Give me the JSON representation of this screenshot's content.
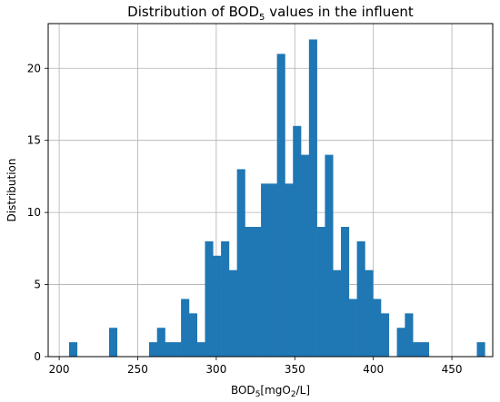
{
  "chart_data": {
    "type": "bar",
    "title_parts": [
      "Distribution of BOD",
      "5",
      " values in the influent"
    ],
    "xlabel_parts": [
      "BOD",
      "5",
      "[mgO",
      "2",
      "/L]"
    ],
    "ylabel": "Distribution",
    "xlim": [
      193,
      476
    ],
    "ylim": [
      0,
      23.1
    ],
    "xticks": [
      200,
      250,
      300,
      350,
      400,
      450
    ],
    "yticks": [
      0,
      5,
      10,
      15,
      20
    ],
    "grid": true,
    "bar_color": "#1f77b4",
    "bins": {
      "start": 206.3,
      "width": 5.09,
      "counts": [
        1,
        0,
        0,
        0,
        0,
        2,
        0,
        0,
        0,
        0,
        1,
        2,
        1,
        1,
        4,
        3,
        1,
        8,
        7,
        8,
        6,
        13,
        9,
        9,
        12,
        12,
        21,
        12,
        16,
        14,
        22,
        9,
        14,
        6,
        9,
        4,
        8,
        6,
        4,
        3,
        0,
        2,
        3,
        1,
        1,
        0,
        0,
        0,
        0,
        0,
        0,
        1
      ]
    }
  }
}
